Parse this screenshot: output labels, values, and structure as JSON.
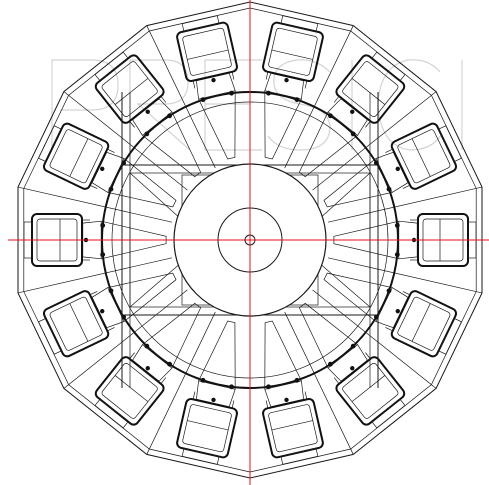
{
  "drawing": {
    "heads": 14,
    "line_color": "#1a1a1a",
    "center_line_color": "#e0101a",
    "watermark_color": "#d4d4d4",
    "watermark_text": "PRECISION"
  }
}
